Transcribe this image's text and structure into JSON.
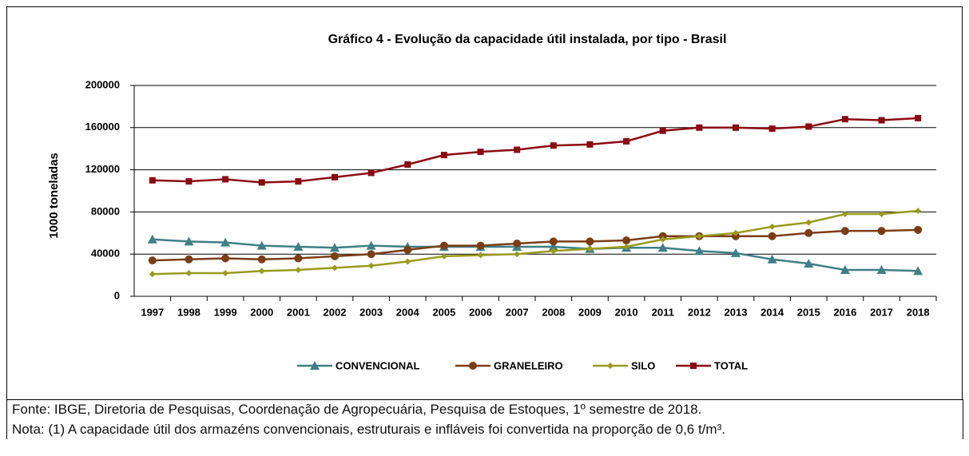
{
  "chart_data": {
    "type": "line",
    "title": "Gráfico 4 - Evolução da capacidade  útil instalada, por tipo - Brasil",
    "y_label": "1000 toneladas",
    "categories": [
      "1997",
      "1998",
      "1999",
      "2000",
      "2001",
      "2002",
      "2003",
      "2004",
      "2005",
      "2006",
      "2007",
      "2008",
      "2009",
      "2010",
      "2011",
      "2012",
      "2013",
      "2014",
      "2015",
      "2016",
      "2017",
      "2018"
    ],
    "ylim": [
      0,
      200000
    ],
    "yticks": [
      0,
      40000,
      80000,
      120000,
      160000,
      200000
    ],
    "grid": true,
    "legend": "bottom",
    "series": [
      {
        "name": "CONVENCIONAL",
        "color": "#3f7f86",
        "marker": "triangle",
        "values": [
          54000,
          52000,
          51000,
          48000,
          47000,
          46000,
          48000,
          47000,
          47000,
          47000,
          47000,
          47000,
          45000,
          46000,
          46000,
          43000,
          41000,
          35000,
          31000,
          25000,
          25000,
          24000
        ]
      },
      {
        "name": "GRANELEIRO",
        "color": "#7b3d14",
        "marker": "circle",
        "values": [
          34000,
          35000,
          36000,
          35000,
          36000,
          38000,
          40000,
          44000,
          48000,
          48000,
          50000,
          52000,
          52000,
          53000,
          57000,
          57000,
          57000,
          57000,
          60000,
          62000,
          62000,
          63000
        ]
      },
      {
        "name": "SILO",
        "color": "#9a9a1c",
        "marker": "diamond",
        "values": [
          21000,
          22000,
          22000,
          24000,
          25000,
          27000,
          29000,
          33000,
          38000,
          39000,
          40000,
          43000,
          45000,
          47000,
          54000,
          57000,
          60000,
          66000,
          70000,
          78000,
          78000,
          81000
        ]
      },
      {
        "name": "TOTAL",
        "color": "#8b0a12",
        "marker": "square",
        "values": [
          110000,
          109000,
          111000,
          108000,
          109000,
          113000,
          117000,
          125000,
          134000,
          137000,
          139000,
          143000,
          144000,
          147000,
          157000,
          160000,
          160000,
          159000,
          161000,
          168000,
          167000,
          169000
        ]
      }
    ]
  },
  "notes": [
    "Fonte: IBGE, Diretoria de Pesquisas, Coordenação de Agropecuária, Pesquisa de Estoques, 1º semestre de 2018.",
    "Nota: (1) A capacidade útil dos armazéns convencionais, estruturais e infláveis foi convertida na proporção de 0,6 t/m³."
  ]
}
